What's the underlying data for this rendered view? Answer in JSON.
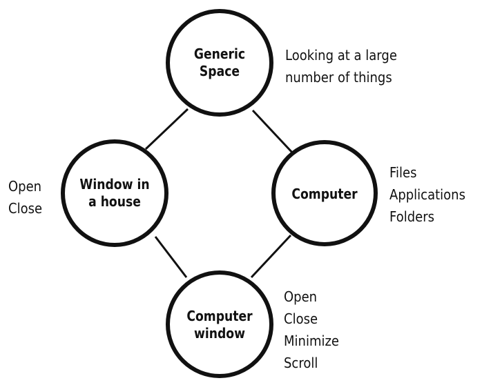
{
  "nodes": {
    "generic_space": {
      "label": "Generic\nSpace"
    },
    "window_in_house": {
      "label": "Window in\na house"
    },
    "computer": {
      "label": "Computer"
    },
    "computer_window": {
      "label": "Computer\nwindow"
    }
  },
  "annotations": {
    "generic_space": [
      "Looking at a large",
      "number of things"
    ],
    "window_in_house": [
      "Open",
      "Close"
    ],
    "computer": [
      "Files",
      "Applications",
      "Folders"
    ],
    "computer_window": [
      "Open",
      "Close",
      "Minimize",
      "Scroll"
    ]
  }
}
